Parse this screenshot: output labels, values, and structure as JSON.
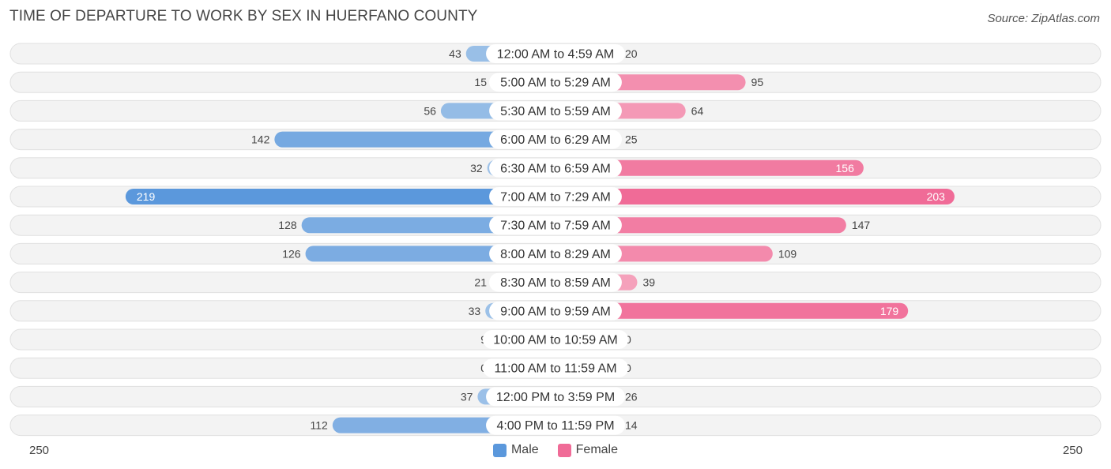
{
  "title": "TIME OF DEPARTURE TO WORK BY SEX IN HUERFANO COUNTY",
  "source": "Source: ZipAtlas.com",
  "colors": {
    "male_light": "#a8c8ea",
    "male_dark": "#5b98dc",
    "female_light": "#f6aec4",
    "female_dark": "#f06b97",
    "row_bg": "#f1f1f1",
    "row_border": "#e0e0e0"
  },
  "chart_data": {
    "type": "bar",
    "orientation": "horizontal-diverging",
    "title": "TIME OF DEPARTURE TO WORK BY SEX IN HUERFANO COUNTY",
    "categories": [
      "12:00 AM to 4:59 AM",
      "5:00 AM to 5:29 AM",
      "5:30 AM to 5:59 AM",
      "6:00 AM to 6:29 AM",
      "6:30 AM to 6:59 AM",
      "7:00 AM to 7:29 AM",
      "7:30 AM to 7:59 AM",
      "8:00 AM to 8:29 AM",
      "8:30 AM to 8:59 AM",
      "9:00 AM to 9:59 AM",
      "10:00 AM to 10:59 AM",
      "11:00 AM to 11:59 AM",
      "12:00 PM to 3:59 PM",
      "4:00 PM to 11:59 PM"
    ],
    "series": [
      {
        "name": "Male",
        "values": [
          43,
          15,
          56,
          142,
          32,
          219,
          128,
          126,
          21,
          33,
          9,
          0,
          37,
          112
        ]
      },
      {
        "name": "Female",
        "values": [
          20,
          95,
          64,
          25,
          156,
          203,
          147,
          109,
          39,
          179,
          0,
          0,
          26,
          14
        ]
      }
    ],
    "xlim": [
      -250,
      250
    ],
    "axis_labels": {
      "left": "250",
      "right": "250"
    },
    "legend": [
      "Male",
      "Female"
    ],
    "legend_position": "bottom-center"
  }
}
